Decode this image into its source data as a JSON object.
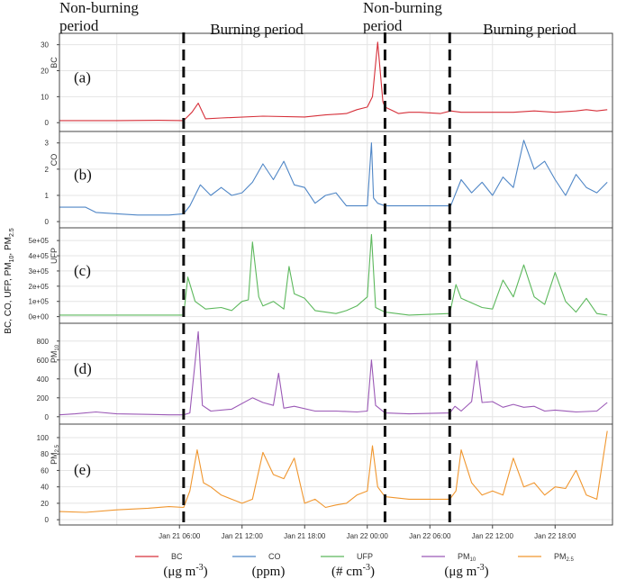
{
  "figure": {
    "top_labels": [
      {
        "text": "Non-burning\nperiod",
        "anchor": "start"
      },
      {
        "text": "Burning period",
        "anchor": "middle"
      },
      {
        "text": "Non-burning\nperiod",
        "anchor": "start"
      },
      {
        "text": "Burning period",
        "anchor": "middle"
      }
    ],
    "common_ylabel": "BC, CO, UFP, PM10, PM2.5",
    "x_ticks": [
      "Jan 21 06:00",
      "Jan 21 12:00",
      "Jan 21 18:00",
      "Jan 22 00:00",
      "Jan 22 06:00",
      "Jan 22 12:00",
      "Jan 22 18:00"
    ],
    "period_boundaries_hours": [
      6.4,
      25.7,
      31.9
    ]
  },
  "legend": {
    "items": [
      {
        "name": "BC",
        "unit": "(μg m-3)",
        "color": "#d6303a"
      },
      {
        "name": "CO",
        "unit": "(ppm)",
        "color": "#4f86c6"
      },
      {
        "name": "UFP",
        "unit": "(# cm-3)",
        "color": "#5cb85c"
      },
      {
        "name": "PM10",
        "unit": "(μg m-3)",
        "color": "#9b59b6"
      },
      {
        "name": "PM2.5",
        "unit": "",
        "color": "#f0962e"
      }
    ]
  },
  "chart_data": [
    {
      "type": "line",
      "panel": "(a)",
      "ylabel": "BC",
      "ylim": [
        -2,
        33
      ],
      "yticks": [
        "0",
        "10",
        "20",
        "30"
      ],
      "color": "#d6303a",
      "x": [
        -5.5,
        0,
        4,
        6.4,
        7.2,
        7.8,
        8.5,
        10,
        14,
        18,
        20,
        22,
        23,
        24,
        24.5,
        25,
        25.5,
        25.7,
        26.5,
        27,
        28,
        29,
        31,
        32,
        33,
        35,
        38,
        40,
        42,
        44,
        45,
        46,
        47
      ],
      "y": [
        0.8,
        0.8,
        0.9,
        0.8,
        4,
        7.5,
        1.5,
        1.8,
        2.5,
        2.2,
        3,
        3.5,
        5,
        6,
        10,
        31,
        8,
        6,
        4.5,
        3.5,
        4,
        4,
        3.5,
        4.5,
        4,
        4,
        4,
        4.5,
        4,
        4.5,
        5,
        4.5,
        5
      ]
    },
    {
      "type": "line",
      "panel": "(b)",
      "ylabel": "CO",
      "ylim": [
        -0.1,
        3.3
      ],
      "yticks": [
        "0",
        "1",
        "2",
        "3"
      ],
      "color": "#4f86c6",
      "x": [
        -5.5,
        -3,
        -2,
        0,
        2,
        4,
        5,
        6.4,
        7,
        8,
        9,
        10,
        11,
        12,
        13,
        14,
        15,
        16,
        17,
        18,
        19,
        20,
        21,
        22,
        24,
        24.4,
        24.6,
        25,
        25.7,
        28,
        30,
        32,
        33,
        34,
        35,
        36,
        37,
        38,
        39,
        40,
        41,
        42,
        43,
        44,
        45,
        46,
        47
      ],
      "y": [
        0.55,
        0.55,
        0.35,
        0.3,
        0.25,
        0.25,
        0.25,
        0.3,
        0.6,
        1.4,
        1.0,
        1.3,
        1.0,
        1.1,
        1.5,
        2.2,
        1.6,
        2.3,
        1.4,
        1.3,
        0.7,
        1.0,
        1.1,
        0.6,
        0.6,
        3.0,
        0.9,
        0.7,
        0.6,
        0.6,
        0.6,
        0.6,
        1.6,
        1.1,
        1.5,
        1.0,
        1.7,
        1.3,
        3.1,
        2.0,
        2.3,
        1.6,
        1.0,
        1.8,
        1.3,
        1.1,
        1.5
      ]
    },
    {
      "type": "line",
      "panel": "(c)",
      "ylabel": "UFP",
      "ylim": [
        -20000.0,
        560000.0
      ],
      "yticks": [
        "0e+00",
        "1e+05",
        "2e+05",
        "3e+05",
        "4e+05",
        "5e+05"
      ],
      "color": "#5cb85c",
      "x": [
        -5.5,
        0,
        5,
        6.4,
        6.8,
        7.5,
        8.5,
        10,
        11,
        12,
        12.6,
        13,
        13.6,
        14,
        15,
        16,
        16.5,
        17,
        18,
        19,
        20,
        21,
        22,
        23,
        24,
        24.4,
        24.8,
        25.7,
        28,
        31.9,
        32.5,
        33,
        34,
        35,
        36,
        37,
        38,
        39,
        40,
        41,
        42,
        43,
        44,
        45,
        46,
        47
      ],
      "y": [
        10000.0,
        10000.0,
        10000.0,
        10000.0,
        260000.0,
        100000.0,
        50000.0,
        60000.0,
        40000.0,
        100000.0,
        110000.0,
        490000.0,
        130000.0,
        70000.0,
        100000.0,
        50000.0,
        330000.0,
        150000.0,
        120000.0,
        40000.0,
        30000.0,
        20000.0,
        40000.0,
        70000.0,
        130000.0,
        540000.0,
        60000.0,
        30000.0,
        10000.0,
        20000.0,
        210000.0,
        120000.0,
        90000.0,
        60000.0,
        50000.0,
        240000.0,
        130000.0,
        340000.0,
        130000.0,
        80000.0,
        290000.0,
        100000.0,
        30000.0,
        120000.0,
        20000.0,
        10000.0
      ]
    },
    {
      "type": "line",
      "panel": "(d)",
      "ylabel": "PM10",
      "ylim": [
        -40,
        950
      ],
      "yticks": [
        "0",
        "200",
        "400",
        "600",
        "800"
      ],
      "color": "#9b59b6",
      "x": [
        -5.5,
        -4,
        -2,
        0,
        3,
        5,
        6.4,
        7,
        7.8,
        8.2,
        9,
        11,
        13,
        14,
        15,
        15.5,
        16,
        17,
        19,
        21,
        23,
        24,
        24.4,
        24.8,
        25.7,
        28,
        31.9,
        32.4,
        33,
        34,
        34.5,
        35,
        36,
        37,
        38,
        39,
        40,
        41,
        42,
        44,
        46,
        47
      ],
      "y": [
        20,
        30,
        50,
        30,
        25,
        20,
        20,
        40,
        900,
        120,
        60,
        80,
        200,
        150,
        120,
        460,
        90,
        110,
        60,
        60,
        50,
        60,
        600,
        120,
        40,
        30,
        40,
        110,
        60,
        160,
        590,
        150,
        160,
        100,
        130,
        100,
        110,
        60,
        70,
        50,
        60,
        150
      ]
    },
    {
      "type": "line",
      "panel": "(e)",
      "ylabel": "PM2.5",
      "ylim": [
        -2,
        112
      ],
      "yticks": [
        "0",
        "20",
        "40",
        "60",
        "80",
        "100"
      ],
      "color": "#f0962e",
      "x": [
        -5.5,
        -3,
        0,
        3,
        5,
        6.4,
        7,
        7.7,
        8.3,
        9,
        10,
        11,
        12,
        13,
        14,
        15,
        16,
        17,
        18,
        19,
        20,
        21,
        22,
        23,
        24,
        24.5,
        25,
        25.7,
        28,
        31.9,
        32.5,
        33,
        34,
        35,
        36,
        37,
        38,
        39,
        40,
        41,
        42,
        43,
        44,
        45,
        46,
        47
      ],
      "y": [
        10,
        9,
        12,
        14,
        16,
        15,
        35,
        85,
        45,
        40,
        30,
        25,
        20,
        25,
        82,
        55,
        50,
        75,
        20,
        25,
        15,
        18,
        20,
        30,
        35,
        90,
        40,
        28,
        25,
        25,
        35,
        85,
        45,
        30,
        35,
        30,
        75,
        40,
        45,
        30,
        40,
        38,
        60,
        30,
        25,
        108
      ]
    }
  ]
}
